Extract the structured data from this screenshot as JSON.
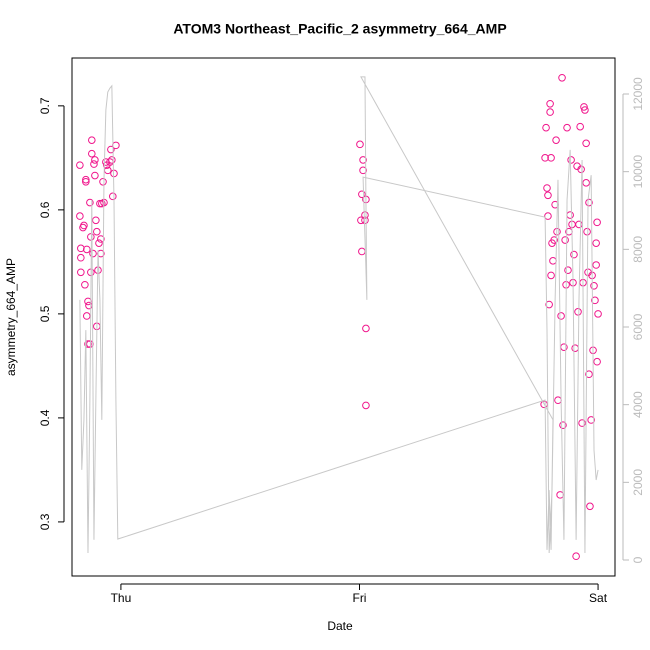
{
  "chart_data": {
    "type": "scatter",
    "title": "ATOM3 Northeast_Pacific_2 asymmetry_664_AMP",
    "xlabel": "Date",
    "ylabel": "asymmetry_664_AMP",
    "xlim": [
      -0.205,
      2.071
    ],
    "ylim": [
      0.248,
      0.746
    ],
    "y2lim": [
      -412,
      12927
    ],
    "xticks": [
      {
        "value": 0,
        "label": "Thu"
      },
      {
        "value": 1,
        "label": "Fri"
      },
      {
        "value": 2,
        "label": "Sat"
      }
    ],
    "yticks": [
      0.3,
      0.4,
      0.5,
      0.6,
      0.7
    ],
    "y2ticks": [
      0,
      2000,
      4000,
      6000,
      8000,
      10000,
      12000
    ],
    "series": [
      {
        "type": "scatter",
        "color": "#f0168c",
        "x": [
          -0.172,
          -0.172,
          -0.168,
          -0.168,
          -0.168,
          -0.159,
          -0.155,
          -0.151,
          -0.147,
          -0.147,
          -0.143,
          -0.143,
          -0.138,
          -0.138,
          -0.134,
          -0.13,
          -0.13,
          -0.126,
          -0.126,
          -0.122,
          -0.122,
          -0.117,
          -0.113,
          -0.109,
          -0.109,
          -0.105,
          -0.101,
          -0.101,
          -0.096,
          -0.092,
          -0.088,
          -0.084,
          -0.084,
          -0.08,
          -0.075,
          -0.071,
          -0.063,
          -0.059,
          -0.055,
          -0.046,
          -0.042,
          -0.038,
          -0.034,
          -0.029,
          -0.021,
          1.002,
          1.015,
          1.015,
          1.01,
          1.027,
          1.006,
          1.023,
          1.023,
          1.01,
          1.027,
          1.027,
          1.774,
          1.778,
          1.782,
          1.786,
          1.79,
          1.79,
          1.795,
          1.799,
          1.799,
          1.803,
          1.803,
          1.807,
          1.811,
          1.816,
          1.82,
          1.824,
          1.828,
          1.832,
          1.841,
          1.845,
          1.849,
          1.853,
          1.857,
          1.862,
          1.866,
          1.87,
          1.874,
          1.878,
          1.883,
          1.887,
          1.891,
          1.895,
          1.899,
          1.904,
          1.908,
          1.912,
          1.916,
          1.92,
          1.925,
          1.929,
          1.933,
          1.937,
          1.941,
          1.945,
          1.95,
          1.954,
          1.958,
          1.962,
          1.966,
          1.971,
          1.975,
          1.979,
          1.983,
          1.987,
          1.992,
          1.996,
          2.0,
          1.996,
          1.992,
          1.95,
          1.962
        ],
        "values": [
          0.643,
          0.594,
          0.563,
          0.554,
          0.54,
          0.583,
          0.585,
          0.528,
          0.629,
          0.627,
          0.562,
          0.498,
          0.512,
          0.471,
          0.508,
          0.607,
          0.471,
          0.54,
          0.574,
          0.654,
          0.667,
          0.558,
          0.644,
          0.648,
          0.633,
          0.59,
          0.488,
          0.579,
          0.542,
          0.568,
          0.606,
          0.558,
          0.572,
          0.606,
          0.627,
          0.607,
          0.646,
          0.643,
          0.638,
          0.646,
          0.658,
          0.648,
          0.613,
          0.635,
          0.662,
          0.663,
          0.648,
          0.638,
          0.615,
          0.61,
          0.59,
          0.595,
          0.59,
          0.56,
          0.486,
          0.412,
          0.413,
          0.65,
          0.679,
          0.621,
          0.594,
          0.614,
          0.509,
          0.702,
          0.694,
          0.65,
          0.537,
          0.568,
          0.551,
          0.571,
          0.605,
          0.667,
          0.579,
          0.417,
          0.326,
          0.498,
          0.727,
          0.393,
          0.468,
          0.571,
          0.528,
          0.679,
          0.542,
          0.579,
          0.595,
          0.648,
          0.586,
          0.53,
          0.557,
          0.467,
          0.267,
          0.642,
          0.502,
          0.586,
          0.68,
          0.639,
          0.395,
          0.53,
          0.699,
          0.696,
          0.626,
          0.579,
          0.54,
          0.442,
          0.315,
          0.398,
          0.537,
          0.465,
          0.527,
          0.513,
          0.568,
          0.588,
          0.5,
          0.454,
          0.547,
          0.664,
          0.607
        ]
      },
      {
        "type": "line",
        "axis": "y2",
        "color": "#c8c8c8",
        "x": [
          -0.172,
          -0.164,
          -0.155,
          -0.147,
          -0.138,
          -0.13,
          -0.122,
          -0.113,
          -0.105,
          -0.096,
          -0.088,
          -0.08,
          -0.071,
          -0.063,
          -0.055,
          -0.046,
          -0.038,
          -0.029,
          -0.021,
          -0.013,
          1.778,
          1.786,
          1.795,
          1.803,
          1.811,
          1.006,
          1.015,
          1.023,
          1.027,
          1.031,
          1.015,
          1.778,
          1.786,
          1.795,
          1.807,
          1.82,
          1.832,
          1.845,
          1.857,
          1.87,
          1.883,
          1.895,
          1.908,
          1.92,
          1.933,
          1.945,
          1.958,
          1.971,
          1.983,
          1.992,
          2.0
        ],
        "values": [
          6700,
          2320,
          3610,
          5920,
          180,
          4120,
          9270,
          520,
          4120,
          7980,
          6700,
          3610,
          9790,
          11590,
          12050,
          12150,
          12210,
          9270,
          4120,
          540,
          4120,
          260,
          1800,
          260,
          3610,
          12440,
          12440,
          12440,
          9270,
          6700,
          9860,
          8830,
          5920,
          180,
          1800,
          6700,
          9790,
          4120,
          520,
          9270,
          10560,
          7210,
          520,
          6700,
          10300,
          180,
          9270,
          9910,
          2830,
          2060,
          2320
        ]
      }
    ]
  }
}
